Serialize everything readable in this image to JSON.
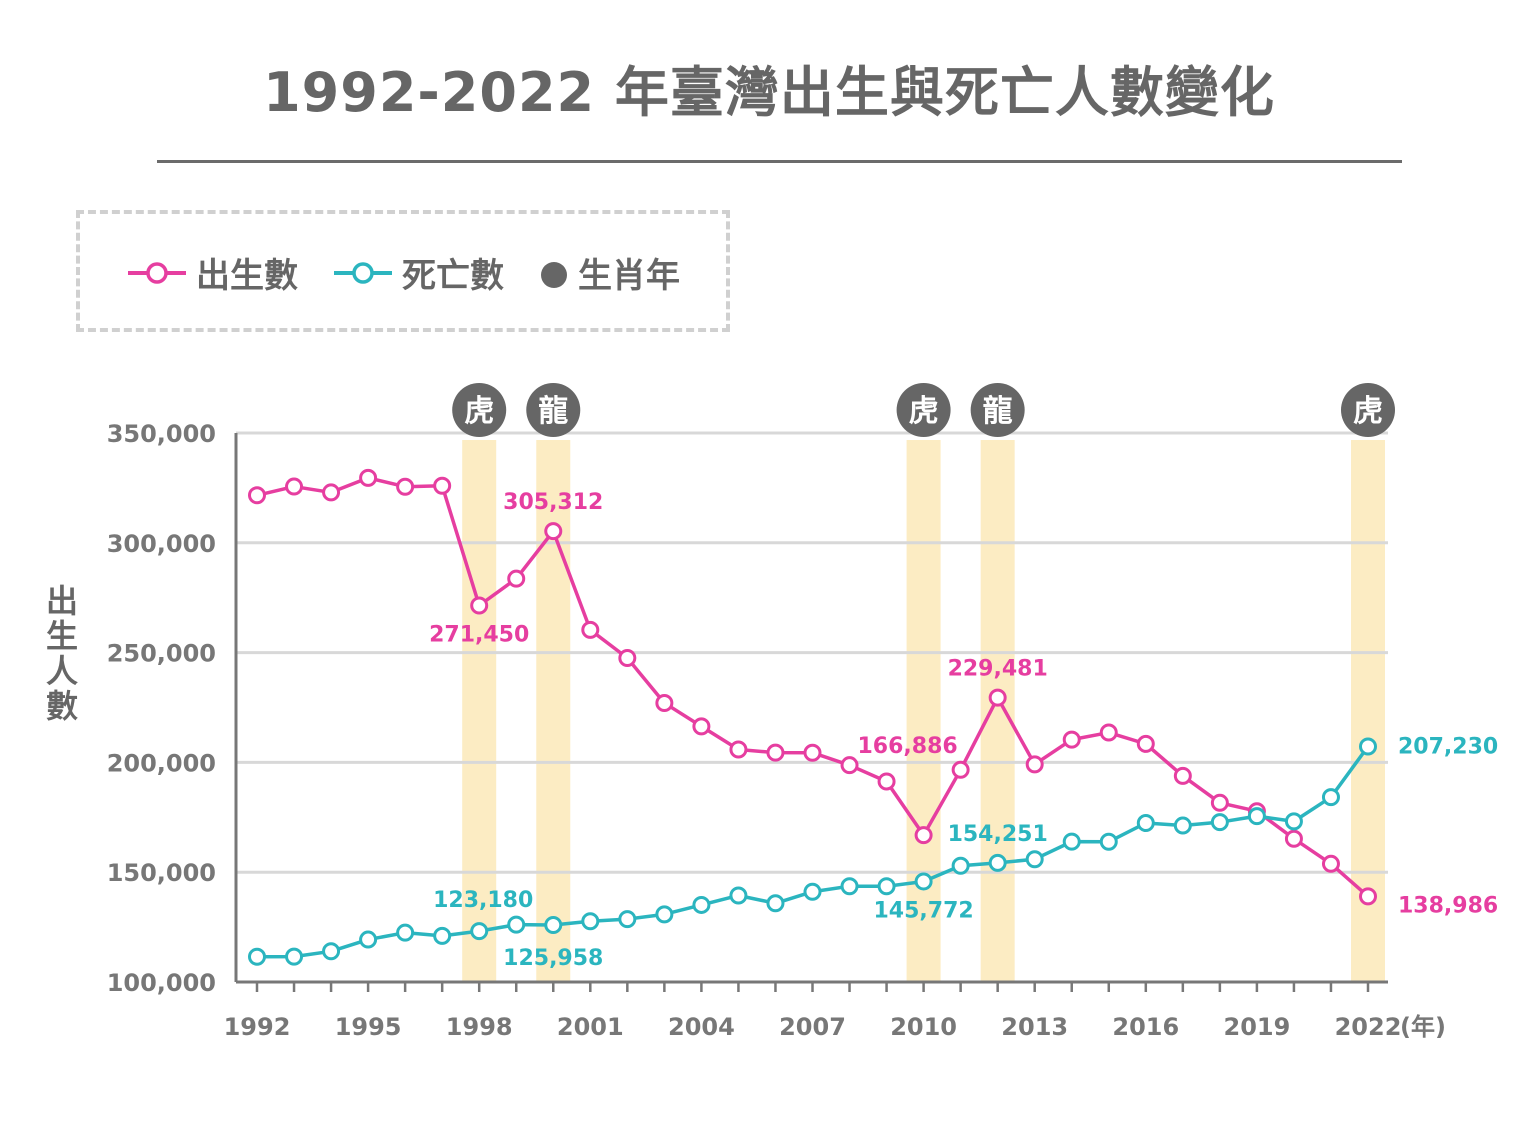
{
  "title": "1992-2022 年臺灣出生與死亡人數變化",
  "legend": {
    "births_label": "出生數",
    "deaths_label": "死亡數",
    "zodiac_label": "生肖年"
  },
  "colors": {
    "births": "#e63ea0",
    "deaths": "#2bb5bf",
    "zodiac_band": "#fcecc3",
    "zodiac_badge": "#666666",
    "grid": "#d8d8d8",
    "axis": "#777777",
    "title": "#666666"
  },
  "chart_data": {
    "type": "line",
    "title": "1992-2022 年臺灣出生與死亡人數變化",
    "ylabel": "出生人數",
    "xlabel": "(年)",
    "ylim": [
      100000,
      350000
    ],
    "xlim": [
      1992,
      2022
    ],
    "y_ticks": [
      100000,
      150000,
      200000,
      250000,
      300000,
      350000
    ],
    "y_tick_labels": [
      "100,000",
      "150,000",
      "200,000",
      "250,000",
      "300,000",
      "350,000"
    ],
    "x_ticks": [
      1992,
      1995,
      1998,
      2001,
      2004,
      2007,
      2010,
      2013,
      2016,
      2019,
      2022
    ],
    "x_tick_labels": [
      "1992",
      "1995",
      "1998",
      "2001",
      "2004",
      "2007",
      "2010",
      "2013",
      "2016",
      "2019",
      "2022"
    ],
    "x_unit_label": "(年)",
    "x": [
      1992,
      1993,
      1994,
      1995,
      1996,
      1997,
      1998,
      1999,
      2000,
      2001,
      2002,
      2003,
      2004,
      2005,
      2006,
      2007,
      2008,
      2009,
      2010,
      2011,
      2012,
      2013,
      2014,
      2015,
      2016,
      2017,
      2018,
      2019,
      2020,
      2021,
      2022
    ],
    "series": [
      {
        "name": "出生數",
        "color": "#e63ea0",
        "values": [
          321632,
          325613,
          322938,
          329581,
          325545,
          326002,
          271450,
          283661,
          305312,
          260354,
          247530,
          227070,
          216419,
          205854,
          204459,
          204414,
          198733,
          191310,
          166886,
          196627,
          229481,
          199113,
          210383,
          213598,
          208440,
          193844,
          181601,
          177767,
          165249,
          153820,
          138986
        ]
      },
      {
        "name": "死亡數",
        "color": "#2bb5bf",
        "values": [
          111520,
          111542,
          113982,
          119327,
          122459,
          121000,
          123180,
          126113,
          125958,
          127647,
          128636,
          130801,
          135092,
          139398,
          135839,
          141111,
          143624,
          143582,
          145772,
          152915,
          154251,
          155908,
          163929,
          163858,
          172405,
          171242,
          172784,
          175546,
          173156,
          184172,
          207230
        ]
      }
    ],
    "annotations": [
      {
        "series": "出生數",
        "year": 2000,
        "label": "305,312",
        "pos": "above"
      },
      {
        "series": "出生數",
        "year": 1998,
        "label": "271,450",
        "pos": "below"
      },
      {
        "series": "出生數",
        "year": 2012,
        "label": "229,481",
        "pos": "above"
      },
      {
        "series": "出生數",
        "year": 2010,
        "label": "166,886",
        "pos": "left"
      },
      {
        "series": "出生數",
        "year": 2022,
        "label": "138,986",
        "pos": "right"
      },
      {
        "series": "死亡數",
        "year": 1998,
        "label": "123,180",
        "pos": "above"
      },
      {
        "series": "死亡數",
        "year": 2000,
        "label": "125,958",
        "pos": "below"
      },
      {
        "series": "死亡數",
        "year": 2010,
        "label": "145,772",
        "pos": "below"
      },
      {
        "series": "死亡數",
        "year": 2012,
        "label": "154,251",
        "pos": "above"
      },
      {
        "series": "死亡數",
        "year": 2022,
        "label": "207,230",
        "pos": "right"
      }
    ],
    "zodiac_years": [
      {
        "year": 1998,
        "label": "虎"
      },
      {
        "year": 2000,
        "label": "龍"
      },
      {
        "year": 2010,
        "label": "虎"
      },
      {
        "year": 2012,
        "label": "龍"
      },
      {
        "year": 2022,
        "label": "虎"
      }
    ]
  }
}
